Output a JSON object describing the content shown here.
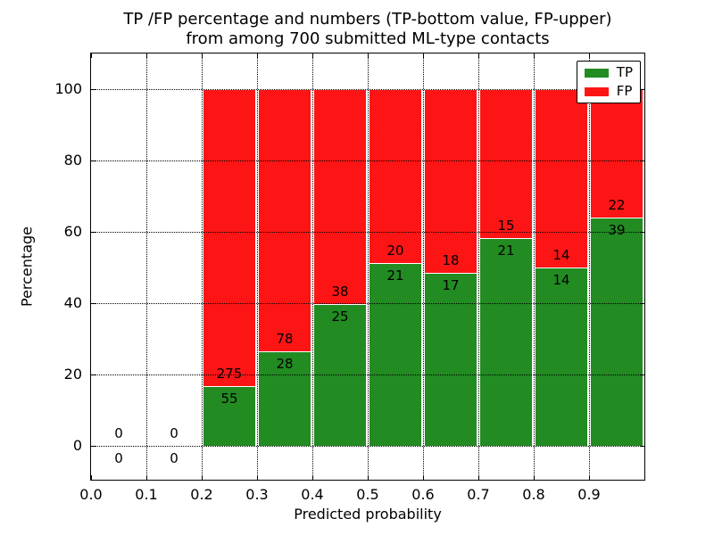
{
  "chart_data": {
    "type": "stacked_bar",
    "title_line1": "TP /FP percentage and numbers (TP-bottom value, FP-upper)",
    "title_line2": "from among 700 submitted ML-type contacts",
    "xlabel": "Predicted probability",
    "ylabel": "Percentage",
    "xlim": [
      0.0,
      1.0
    ],
    "ylim": [
      -9.5,
      110
    ],
    "x_tick_values": [
      0.0,
      0.1,
      0.2,
      0.3,
      0.4,
      0.5,
      0.6,
      0.7,
      0.8,
      0.9
    ],
    "x_tick_labels": [
      "0.0",
      "0.1",
      "0.2",
      "0.3",
      "0.4",
      "0.5",
      "0.6",
      "0.7",
      "0.8",
      "0.9"
    ],
    "y_tick_values": [
      0,
      20,
      40,
      60,
      80,
      100
    ],
    "y_tick_labels": [
      "0",
      "20",
      "40",
      "60",
      "80",
      "100"
    ],
    "grid": "dotted",
    "units": "percent stacked to 100",
    "series": [
      {
        "name": "TP",
        "color": "#228b22"
      },
      {
        "name": "FP",
        "color": "#fd1515"
      }
    ],
    "bar_edge_color": "#ffffff",
    "bins": [
      {
        "range": [
          0.0,
          0.1
        ],
        "tp": 0,
        "fp": 0
      },
      {
        "range": [
          0.1,
          0.2
        ],
        "tp": 0,
        "fp": 0
      },
      {
        "range": [
          0.2,
          0.3
        ],
        "tp": 55,
        "fp": 275
      },
      {
        "range": [
          0.3,
          0.4
        ],
        "tp": 28,
        "fp": 78
      },
      {
        "range": [
          0.4,
          0.5
        ],
        "tp": 25,
        "fp": 38
      },
      {
        "range": [
          0.5,
          0.6
        ],
        "tp": 21,
        "fp": 20
      },
      {
        "range": [
          0.6,
          0.7
        ],
        "tp": 17,
        "fp": 18
      },
      {
        "range": [
          0.7,
          0.8
        ],
        "tp": 21,
        "fp": 15
      },
      {
        "range": [
          0.8,
          0.9
        ],
        "tp": 14,
        "fp": 14
      },
      {
        "range": [
          0.9,
          1.0
        ],
        "tp": 39,
        "fp": 22
      }
    ],
    "legend": {
      "position": "upper right",
      "entries": [
        "TP",
        "FP"
      ]
    }
  }
}
